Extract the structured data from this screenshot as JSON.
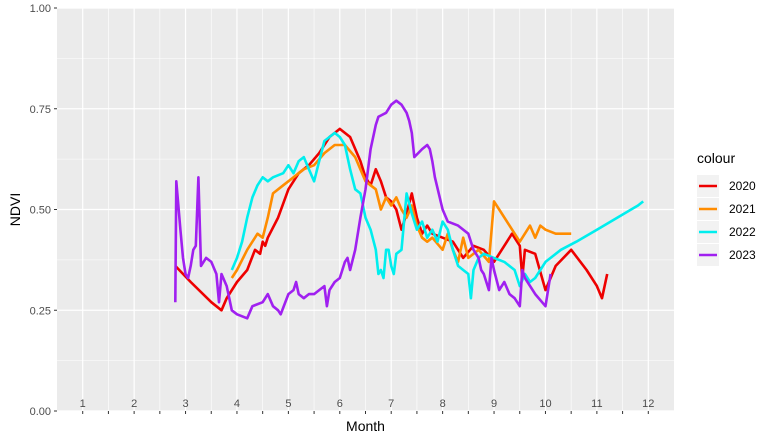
{
  "chart_data": {
    "type": "line",
    "xlabel": "Month",
    "ylabel": "NDVI",
    "xlim": [
      0.5,
      12.5
    ],
    "ylim": [
      0,
      1
    ],
    "x_ticks": [
      1,
      2,
      3,
      4,
      5,
      6,
      7,
      8,
      9,
      10,
      11,
      12
    ],
    "x_tick_labels": [
      "1",
      "2",
      "3",
      "4",
      "5",
      "6",
      "7",
      "8",
      "9",
      "10",
      "11",
      "12"
    ],
    "y_ticks": [
      0,
      0.25,
      0.5,
      0.75,
      1
    ],
    "y_tick_labels": [
      "0.00",
      "0.25",
      "0.50",
      "0.75",
      "1.00"
    ],
    "grid": true,
    "legend": {
      "title": "colour",
      "position": "right"
    },
    "series": [
      {
        "name": "2020",
        "color": "#ee0000",
        "points": [
          [
            2.8,
            0.36
          ],
          [
            3.1,
            0.32
          ],
          [
            3.5,
            0.27
          ],
          [
            3.7,
            0.25
          ],
          [
            3.8,
            0.28
          ],
          [
            4.0,
            0.32
          ],
          [
            4.2,
            0.35
          ],
          [
            4.35,
            0.4
          ],
          [
            4.45,
            0.39
          ],
          [
            4.5,
            0.42
          ],
          [
            4.55,
            0.41
          ],
          [
            4.6,
            0.43
          ],
          [
            4.8,
            0.48
          ],
          [
            5.0,
            0.55
          ],
          [
            5.2,
            0.59
          ],
          [
            5.4,
            0.61
          ],
          [
            5.6,
            0.64
          ],
          [
            5.8,
            0.68
          ],
          [
            6.0,
            0.7
          ],
          [
            6.2,
            0.68
          ],
          [
            6.4,
            0.62
          ],
          [
            6.5,
            0.58
          ],
          [
            6.6,
            0.56
          ],
          [
            6.7,
            0.6
          ],
          [
            6.8,
            0.57
          ],
          [
            6.9,
            0.53
          ],
          [
            7.0,
            0.52
          ],
          [
            7.1,
            0.5
          ],
          [
            7.2,
            0.45
          ],
          [
            7.3,
            0.49
          ],
          [
            7.4,
            0.54
          ],
          [
            7.5,
            0.48
          ],
          [
            7.6,
            0.44
          ],
          [
            7.7,
            0.46
          ],
          [
            7.8,
            0.44
          ],
          [
            8.0,
            0.43
          ],
          [
            8.2,
            0.42
          ],
          [
            8.4,
            0.38
          ],
          [
            8.6,
            0.41
          ],
          [
            8.8,
            0.4
          ],
          [
            9.0,
            0.37
          ],
          [
            9.2,
            0.41
          ],
          [
            9.35,
            0.44
          ],
          [
            9.5,
            0.41
          ],
          [
            9.55,
            0.33
          ],
          [
            9.6,
            0.4
          ],
          [
            9.8,
            0.39
          ],
          [
            10.0,
            0.3
          ],
          [
            10.2,
            0.36
          ],
          [
            10.5,
            0.4
          ],
          [
            10.8,
            0.35
          ],
          [
            11.0,
            0.31
          ],
          [
            11.1,
            0.28
          ],
          [
            11.2,
            0.34
          ]
        ]
      },
      {
        "name": "2021",
        "color": "#ff8c00",
        "points": [
          [
            3.9,
            0.33
          ],
          [
            4.0,
            0.35
          ],
          [
            4.2,
            0.4
          ],
          [
            4.4,
            0.44
          ],
          [
            4.5,
            0.43
          ],
          [
            4.6,
            0.48
          ],
          [
            4.7,
            0.54
          ],
          [
            4.9,
            0.56
          ],
          [
            5.1,
            0.58
          ],
          [
            5.3,
            0.6
          ],
          [
            5.5,
            0.61
          ],
          [
            5.7,
            0.64
          ],
          [
            5.9,
            0.66
          ],
          [
            6.1,
            0.66
          ],
          [
            6.3,
            0.63
          ],
          [
            6.5,
            0.57
          ],
          [
            6.7,
            0.55
          ],
          [
            6.8,
            0.5
          ],
          [
            6.9,
            0.53
          ],
          [
            7.0,
            0.51
          ],
          [
            7.1,
            0.53
          ],
          [
            7.2,
            0.5
          ],
          [
            7.3,
            0.48
          ],
          [
            7.4,
            0.51
          ],
          [
            7.5,
            0.46
          ],
          [
            7.6,
            0.43
          ],
          [
            7.7,
            0.42
          ],
          [
            7.8,
            0.43
          ],
          [
            8.0,
            0.4
          ],
          [
            8.1,
            0.44
          ],
          [
            8.2,
            0.4
          ],
          [
            8.3,
            0.37
          ],
          [
            8.4,
            0.43
          ],
          [
            8.5,
            0.38
          ],
          [
            8.7,
            0.4
          ],
          [
            8.9,
            0.37
          ],
          [
            9.0,
            0.52
          ],
          [
            9.1,
            0.5
          ],
          [
            9.3,
            0.46
          ],
          [
            9.5,
            0.42
          ],
          [
            9.7,
            0.46
          ],
          [
            9.8,
            0.43
          ],
          [
            9.9,
            0.46
          ],
          [
            10.0,
            0.45
          ],
          [
            10.2,
            0.44
          ],
          [
            10.5,
            0.44
          ]
        ]
      },
      {
        "name": "2022",
        "color": "#00eeee",
        "points": [
          [
            3.9,
            0.35
          ],
          [
            4.0,
            0.38
          ],
          [
            4.1,
            0.42
          ],
          [
            4.2,
            0.48
          ],
          [
            4.3,
            0.53
          ],
          [
            4.4,
            0.56
          ],
          [
            4.5,
            0.58
          ],
          [
            4.6,
            0.57
          ],
          [
            4.7,
            0.58
          ],
          [
            4.9,
            0.59
          ],
          [
            5.0,
            0.61
          ],
          [
            5.1,
            0.59
          ],
          [
            5.2,
            0.62
          ],
          [
            5.3,
            0.63
          ],
          [
            5.4,
            0.6
          ],
          [
            5.5,
            0.57
          ],
          [
            5.6,
            0.62
          ],
          [
            5.7,
            0.67
          ],
          [
            5.8,
            0.68
          ],
          [
            5.9,
            0.69
          ],
          [
            6.0,
            0.68
          ],
          [
            6.1,
            0.66
          ],
          [
            6.2,
            0.6
          ],
          [
            6.3,
            0.55
          ],
          [
            6.4,
            0.54
          ],
          [
            6.5,
            0.48
          ],
          [
            6.6,
            0.45
          ],
          [
            6.7,
            0.4
          ],
          [
            6.75,
            0.34
          ],
          [
            6.8,
            0.35
          ],
          [
            6.85,
            0.33
          ],
          [
            6.9,
            0.4
          ],
          [
            6.95,
            0.4
          ],
          [
            7.0,
            0.36
          ],
          [
            7.05,
            0.34
          ],
          [
            7.1,
            0.39
          ],
          [
            7.2,
            0.4
          ],
          [
            7.3,
            0.54
          ],
          [
            7.4,
            0.49
          ],
          [
            7.5,
            0.45
          ],
          [
            7.6,
            0.47
          ],
          [
            7.7,
            0.43
          ],
          [
            7.8,
            0.45
          ],
          [
            7.9,
            0.42
          ],
          [
            8.0,
            0.47
          ],
          [
            8.1,
            0.45
          ],
          [
            8.2,
            0.4
          ],
          [
            8.3,
            0.36
          ],
          [
            8.4,
            0.35
          ],
          [
            8.5,
            0.34
          ],
          [
            8.55,
            0.28
          ],
          [
            8.6,
            0.35
          ],
          [
            8.7,
            0.38
          ],
          [
            8.8,
            0.39
          ],
          [
            9.0,
            0.38
          ],
          [
            9.2,
            0.37
          ],
          [
            9.4,
            0.35
          ],
          [
            9.5,
            0.31
          ],
          [
            9.6,
            0.34
          ],
          [
            9.7,
            0.32
          ],
          [
            9.8,
            0.33
          ],
          [
            10.0,
            0.37
          ],
          [
            10.3,
            0.4
          ],
          [
            10.6,
            0.42
          ],
          [
            11.0,
            0.45
          ],
          [
            11.4,
            0.48
          ],
          [
            11.8,
            0.51
          ],
          [
            11.9,
            0.52
          ]
        ]
      },
      {
        "name": "2023",
        "color": "#a020f0",
        "points": [
          [
            2.8,
            0.27
          ],
          [
            2.82,
            0.57
          ],
          [
            2.9,
            0.45
          ],
          [
            2.95,
            0.38
          ],
          [
            3.0,
            0.34
          ],
          [
            3.05,
            0.33
          ],
          [
            3.1,
            0.36
          ],
          [
            3.15,
            0.4
          ],
          [
            3.2,
            0.41
          ],
          [
            3.25,
            0.58
          ],
          [
            3.3,
            0.36
          ],
          [
            3.4,
            0.38
          ],
          [
            3.5,
            0.37
          ],
          [
            3.6,
            0.34
          ],
          [
            3.65,
            0.27
          ],
          [
            3.7,
            0.34
          ],
          [
            3.8,
            0.31
          ],
          [
            3.9,
            0.25
          ],
          [
            4.0,
            0.24
          ],
          [
            4.2,
            0.23
          ],
          [
            4.3,
            0.26
          ],
          [
            4.5,
            0.27
          ],
          [
            4.6,
            0.29
          ],
          [
            4.7,
            0.26
          ],
          [
            4.8,
            0.25
          ],
          [
            4.85,
            0.24
          ],
          [
            5.0,
            0.29
          ],
          [
            5.1,
            0.3
          ],
          [
            5.15,
            0.32
          ],
          [
            5.2,
            0.29
          ],
          [
            5.3,
            0.28
          ],
          [
            5.4,
            0.29
          ],
          [
            5.5,
            0.29
          ],
          [
            5.6,
            0.3
          ],
          [
            5.7,
            0.31
          ],
          [
            5.75,
            0.26
          ],
          [
            5.8,
            0.3
          ],
          [
            5.9,
            0.32
          ],
          [
            6.0,
            0.33
          ],
          [
            6.1,
            0.37
          ],
          [
            6.15,
            0.38
          ],
          [
            6.2,
            0.35
          ],
          [
            6.3,
            0.4
          ],
          [
            6.4,
            0.48
          ],
          [
            6.5,
            0.55
          ],
          [
            6.6,
            0.65
          ],
          [
            6.7,
            0.71
          ],
          [
            6.75,
            0.73
          ],
          [
            6.9,
            0.74
          ],
          [
            7.0,
            0.76
          ],
          [
            7.1,
            0.77
          ],
          [
            7.2,
            0.76
          ],
          [
            7.3,
            0.74
          ],
          [
            7.35,
            0.72
          ],
          [
            7.4,
            0.69
          ],
          [
            7.45,
            0.63
          ],
          [
            7.6,
            0.65
          ],
          [
            7.7,
            0.66
          ],
          [
            7.75,
            0.65
          ],
          [
            7.8,
            0.62
          ],
          [
            7.85,
            0.58
          ],
          [
            8.0,
            0.5
          ],
          [
            8.1,
            0.47
          ],
          [
            8.3,
            0.46
          ],
          [
            8.5,
            0.44
          ],
          [
            8.6,
            0.4
          ],
          [
            8.7,
            0.38
          ],
          [
            8.75,
            0.35
          ],
          [
            8.8,
            0.34
          ],
          [
            8.9,
            0.3
          ],
          [
            8.95,
            0.38
          ],
          [
            9.0,
            0.35
          ],
          [
            9.1,
            0.3
          ],
          [
            9.2,
            0.32
          ],
          [
            9.3,
            0.29
          ],
          [
            9.4,
            0.28
          ],
          [
            9.5,
            0.26
          ],
          [
            9.55,
            0.35
          ],
          [
            9.6,
            0.33
          ],
          [
            9.8,
            0.29
          ],
          [
            10.0,
            0.26
          ],
          [
            10.1,
            0.34
          ]
        ]
      }
    ]
  }
}
